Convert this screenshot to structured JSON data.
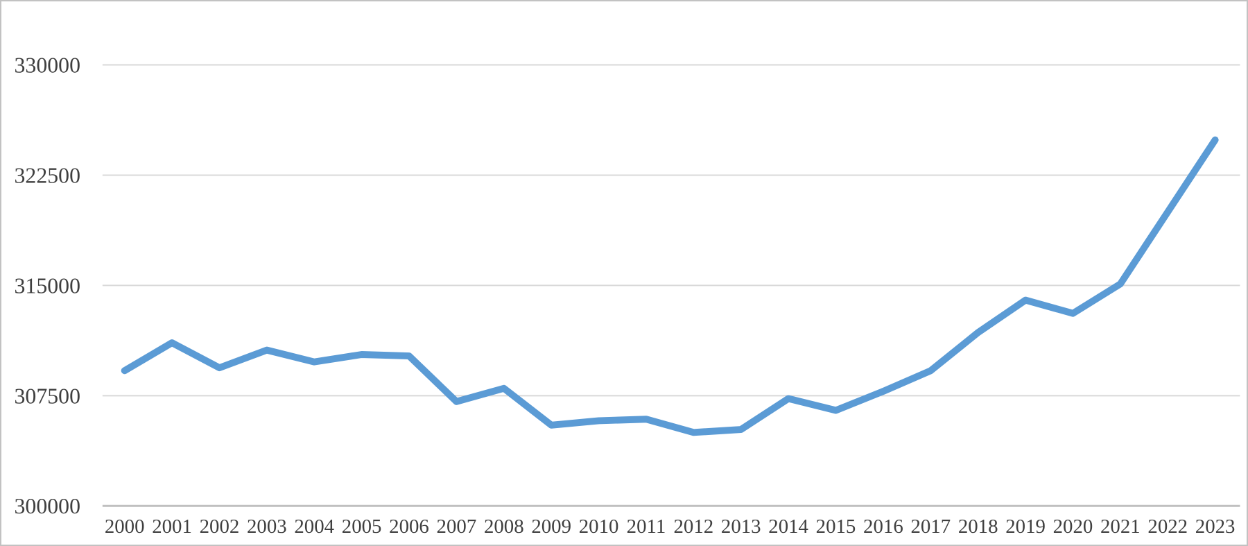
{
  "chart_data": {
    "type": "line",
    "title": "",
    "xlabel": "",
    "ylabel": "",
    "categories": [
      "2000",
      "2001",
      "2002",
      "2003",
      "2004",
      "2005",
      "2006",
      "2007",
      "2008",
      "2009",
      "2010",
      "2011",
      "2012",
      "2013",
      "2014",
      "2015",
      "2016",
      "2017",
      "2018",
      "2019",
      "2020",
      "2021",
      "2022",
      "2023"
    ],
    "series": [
      {
        "name": "value",
        "values": [
          309200,
          311100,
          309400,
          310600,
          309800,
          310300,
          310200,
          307100,
          308000,
          305500,
          305800,
          305900,
          305000,
          305200,
          307300,
          306500,
          307800,
          309200,
          311800,
          314000,
          313100,
          315100,
          320000,
          324900
        ]
      }
    ],
    "y_axis": {
      "min": 300000,
      "max": 330000,
      "tick_step": 7500,
      "ticks": [
        330000,
        322500,
        315000,
        307500,
        300000
      ],
      "tick_labels": [
        "330000",
        "322500",
        "315000",
        "307500",
        "300000"
      ]
    },
    "x_axis": {
      "position": "bottom",
      "tick_labels": [
        "2000",
        "2001",
        "2002",
        "2003",
        "2004",
        "2005",
        "2006",
        "2007",
        "2008",
        "2009",
        "2010",
        "2011",
        "2012",
        "2013",
        "2014",
        "2015",
        "2016",
        "2017",
        "2018",
        "2019",
        "2020",
        "2021",
        "2022",
        "2023"
      ]
    },
    "legend": "none",
    "grid": "horizontal",
    "colors": {
      "line": "#5b9bd5",
      "gridline": "#d9d9d9",
      "axis_line": "#c0c0c0",
      "label": "#3f3f3f",
      "border": "#c2c2c2",
      "background": "#ffffff"
    }
  }
}
